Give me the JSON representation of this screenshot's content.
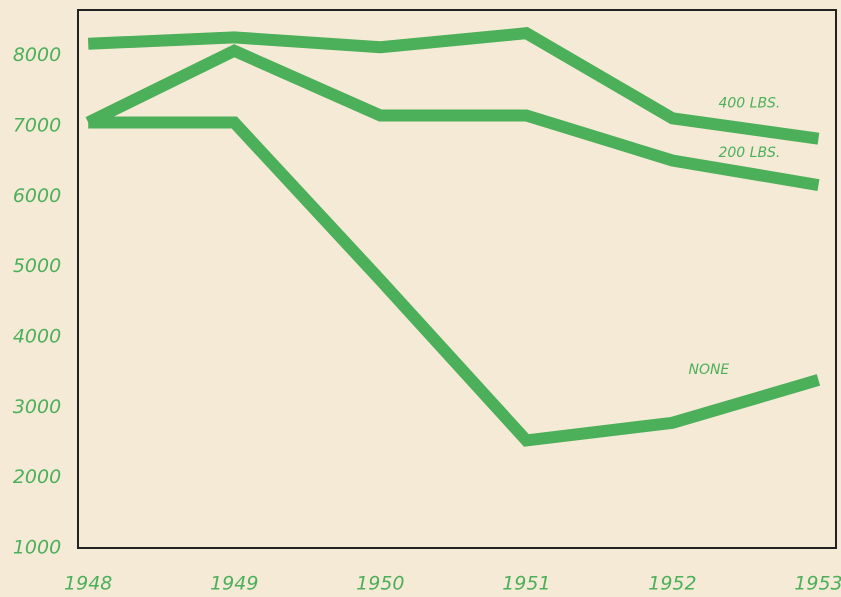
{
  "chart_data": {
    "type": "line",
    "x": [
      1948,
      1949,
      1950,
      1951,
      1952,
      1953
    ],
    "series": [
      {
        "name": "400 LBS.",
        "color": "#4caf5a",
        "values": [
          8170,
          8260,
          8120,
          8320,
          7110,
          6820
        ]
      },
      {
        "name": "200 LBS.",
        "color": "#4caf5a",
        "values": [
          7050,
          8070,
          7150,
          7150,
          6510,
          6160
        ]
      },
      {
        "name": "NONE",
        "color": "#4caf5a",
        "values": [
          7050,
          7050,
          4810,
          2530,
          2780,
          3390
        ]
      }
    ],
    "xlim": [
      1947.93,
      1953.12
    ],
    "xticks": [
      1948,
      1949,
      1950,
      1951,
      1952,
      1953
    ],
    "ylim": [
      1000,
      8650
    ],
    "yticks": [
      1000,
      2000,
      3000,
      4000,
      5000,
      6000,
      7000,
      8000
    ]
  }
}
